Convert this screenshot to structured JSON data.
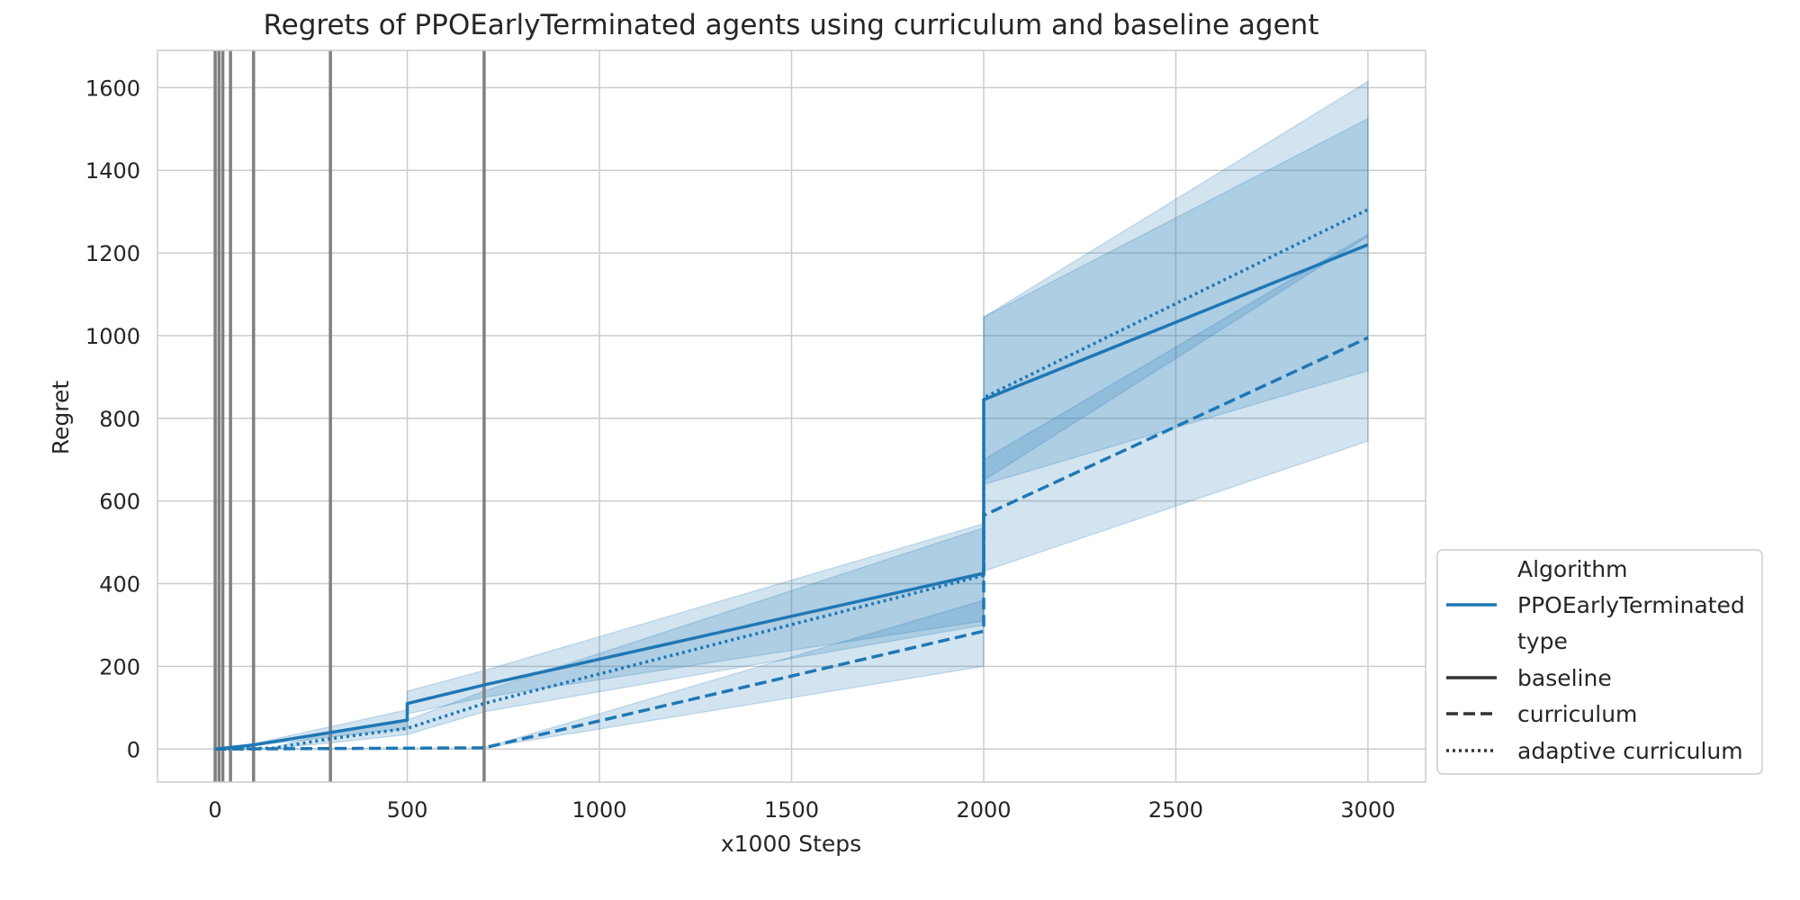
{
  "chart_data": {
    "type": "line",
    "title": "Regrets of PPOEarlyTerminated agents using curriculum and baseline agent",
    "xlabel": "x1000 Steps",
    "ylabel": "Regret",
    "xlim": [
      -150,
      3150
    ],
    "ylim": [
      -80,
      1690
    ],
    "xticks": [
      0,
      500,
      1000,
      1500,
      2000,
      2500,
      3000
    ],
    "yticks": [
      0,
      200,
      400,
      600,
      800,
      1000,
      1200,
      1400,
      1600
    ],
    "grid": true,
    "colors": {
      "series": "#1f77b4",
      "vlines": "#808080",
      "grid": "#cccccc",
      "legend_line": "#333333"
    },
    "vertical_lines_x": [
      0,
      10,
      20,
      40,
      100,
      300,
      700
    ],
    "series": [
      {
        "style": "baseline",
        "x": [
          0,
          50,
          100,
          500,
          500,
          700,
          2000,
          2000,
          3000
        ],
        "y": [
          0,
          5,
          10,
          70,
          110,
          155,
          425,
          845,
          1220
        ],
        "upper": [
          0,
          6,
          13,
          95,
          140,
          190,
          545,
          1045,
          1615
        ],
        "lower": [
          0,
          4,
          8,
          50,
          85,
          125,
          310,
          640,
          915
        ]
      },
      {
        "style": "curriculum",
        "x": [
          0,
          700,
          700,
          2000,
          2000,
          3000
        ],
        "y": [
          0,
          3,
          3,
          285,
          565,
          995
        ],
        "upper": [
          0,
          3,
          3,
          360,
          700,
          1245
        ],
        "lower": [
          0,
          3,
          3,
          200,
          430,
          745
        ]
      },
      {
        "style": "adaptive curriculum",
        "x": [
          0,
          150,
          300,
          500,
          700,
          2000,
          2000,
          3000
        ],
        "y": [
          0,
          2,
          25,
          50,
          110,
          420,
          850,
          1305
        ],
        "upper": [
          0,
          3,
          40,
          70,
          140,
          535,
          1045,
          1525
        ],
        "lower": [
          0,
          1,
          15,
          35,
          90,
          300,
          650,
          1240
        ]
      }
    ],
    "legend": {
      "position": "lower right, outside",
      "algorithm_header": "Algorithm",
      "algorithm_label": "PPOEarlyTerminated",
      "type_header": "type",
      "entries": [
        "baseline",
        "curriculum",
        "adaptive curriculum"
      ]
    }
  }
}
